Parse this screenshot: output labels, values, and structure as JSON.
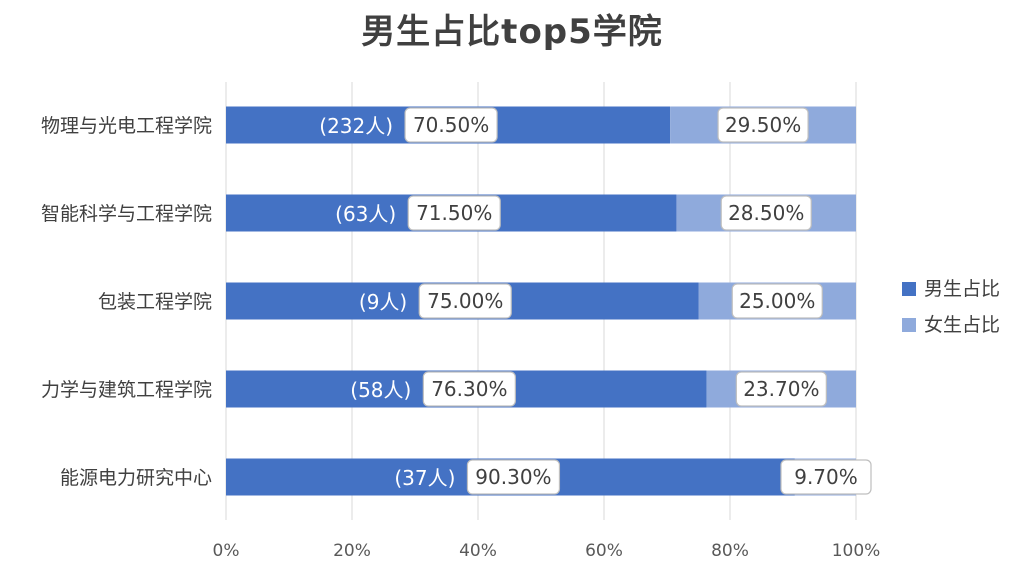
{
  "chart_data": {
    "type": "bar",
    "orientation": "horizontal",
    "stacked": true,
    "title": "男生占比top5学院",
    "categories": [
      "物理与光电工程学院",
      "智能科学与工程学院",
      "包装工程学院",
      "力学与建筑工程学院",
      "能源电力研究中心"
    ],
    "counts": [
      "(232人)",
      "(63人)",
      "(9人)",
      "(58人)",
      "(37人)"
    ],
    "series": [
      {
        "name": "男生占比",
        "values": [
          70.5,
          71.5,
          75.0,
          76.3,
          90.3
        ],
        "labels": [
          "70.50%",
          "71.50%",
          "75.00%",
          "76.30%",
          "90.30%"
        ],
        "color": "#4472c4"
      },
      {
        "name": "女生占比",
        "values": [
          29.5,
          28.5,
          25.0,
          23.7,
          9.7
        ],
        "labels": [
          "29.50%",
          "28.50%",
          "25.00%",
          "23.70%",
          "9.70%"
        ],
        "color": "#8faadc"
      }
    ],
    "xlim": [
      0,
      100
    ],
    "xticks": [
      "0%",
      "20%",
      "40%",
      "60%",
      "80%",
      "100%"
    ],
    "grid": true,
    "legend_position": "right"
  }
}
